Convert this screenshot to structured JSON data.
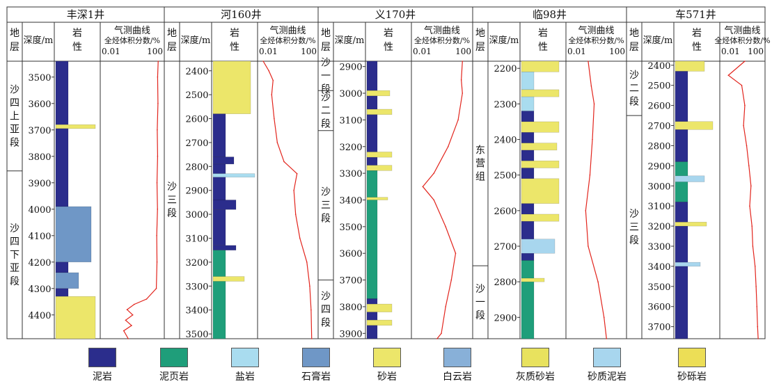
{
  "chart_data": [
    {
      "type": "well-log",
      "well": "丰深1井",
      "header": {
        "strat": "地层",
        "depth": "深度/m",
        "lith": "岩性",
        "gas_title": "气测曲线",
        "gas_unit": "全烃体积分数/%",
        "gas_min": "0.01",
        "gas_max": "100"
      },
      "depth_range": [
        3440,
        4490
      ],
      "depth_ticks": [
        3500,
        3600,
        3700,
        3800,
        3900,
        4000,
        4100,
        4200,
        4300,
        4400
      ],
      "strata": [
        {
          "name": "沙四上亚段",
          "top": 3440,
          "bottom": 3855
        },
        {
          "name": "沙四下亚段",
          "top": 3855,
          "bottom": 4490
        }
      ],
      "lithology": [
        {
          "top": 3440,
          "bottom": 3680,
          "rock": "泥岩",
          "width": 0.3
        },
        {
          "top": 3680,
          "bottom": 3695,
          "rock": "砂岩",
          "width": 0.95
        },
        {
          "top": 3695,
          "bottom": 3990,
          "rock": "泥岩",
          "width": 0.3
        },
        {
          "top": 3990,
          "bottom": 4200,
          "rock": "石膏岩",
          "width": 0.85
        },
        {
          "top": 4200,
          "bottom": 4240,
          "rock": "泥岩",
          "width": 0.3
        },
        {
          "top": 4240,
          "bottom": 4300,
          "rock": "石膏岩",
          "width": 0.55
        },
        {
          "top": 4300,
          "bottom": 4330,
          "rock": "泥岩",
          "width": 0.3
        },
        {
          "top": 4330,
          "bottom": 4490,
          "rock": "砂岩",
          "width": 0.95
        }
      ],
      "gas_curve": [
        [
          3440,
          60
        ],
        [
          3500,
          55
        ],
        [
          3600,
          58
        ],
        [
          3700,
          52
        ],
        [
          3800,
          55
        ],
        [
          3900,
          50
        ],
        [
          4000,
          54
        ],
        [
          4100,
          48
        ],
        [
          4200,
          50
        ],
        [
          4300,
          45
        ],
        [
          4340,
          10
        ],
        [
          4360,
          1.5
        ],
        [
          4380,
          0.5
        ],
        [
          4400,
          1.2
        ],
        [
          4420,
          0.4
        ],
        [
          4440,
          1.0
        ],
        [
          4460,
          0.3
        ],
        [
          4490,
          0.6
        ]
      ]
    },
    {
      "type": "well-log",
      "well": "河160井",
      "header": {
        "strat": "地层",
        "depth": "深度/m",
        "lith": "岩性",
        "gas_title": "气测曲线",
        "gas_unit": "全烃体积分数/%",
        "gas_min": "0.01",
        "gas_max": "100"
      },
      "depth_range": [
        2360,
        3520
      ],
      "depth_ticks": [
        2400,
        2500,
        2600,
        2700,
        2800,
        2900,
        3000,
        3100,
        3200,
        3300,
        3400,
        3500
      ],
      "strata": [
        {
          "name": "沙三段",
          "top": 2360,
          "bottom": 3520
        }
      ],
      "lithology": [
        {
          "top": 2360,
          "bottom": 2580,
          "rock": "砂岩",
          "width": 0.9
        },
        {
          "top": 2580,
          "bottom": 2760,
          "rock": "泥岩",
          "width": 0.3
        },
        {
          "top": 2760,
          "bottom": 2790,
          "rock": "泥岩",
          "width": 0.5
        },
        {
          "top": 2790,
          "bottom": 2830,
          "rock": "泥岩",
          "width": 0.3
        },
        {
          "top": 2830,
          "bottom": 2845,
          "rock": "盐岩",
          "width": 1.0
        },
        {
          "top": 2845,
          "bottom": 2940,
          "rock": "泥岩",
          "width": 0.3
        },
        {
          "top": 2940,
          "bottom": 2980,
          "rock": "泥岩",
          "width": 0.55
        },
        {
          "top": 2980,
          "bottom": 3130,
          "rock": "泥岩",
          "width": 0.3
        },
        {
          "top": 3130,
          "bottom": 3150,
          "rock": "泥岩",
          "width": 0.55
        },
        {
          "top": 3150,
          "bottom": 3520,
          "rock": "泥页岩",
          "width": 0.3
        },
        {
          "top": 3260,
          "bottom": 3280,
          "rock": "砂岩",
          "width": 0.75
        }
      ],
      "gas_curve": [
        [
          2360,
          0.02
        ],
        [
          2400,
          0.05
        ],
        [
          2440,
          0.1
        ],
        [
          2500,
          0.08
        ],
        [
          2600,
          0.12
        ],
        [
          2700,
          0.2
        ],
        [
          2780,
          0.6
        ],
        [
          2830,
          5
        ],
        [
          2900,
          3
        ],
        [
          3000,
          4
        ],
        [
          3100,
          8
        ],
        [
          3200,
          25
        ],
        [
          3300,
          40
        ],
        [
          3400,
          50
        ],
        [
          3520,
          55
        ]
      ]
    },
    {
      "type": "well-log",
      "well": "义170井",
      "header": {
        "strat": "地层",
        "depth": "深度/m",
        "lith": "岩性",
        "gas_title": "气测曲线",
        "gas_unit": "全烃体积分数/%",
        "gas_min": "0.01",
        "gas_max": "100"
      },
      "depth_range": [
        2880,
        3920
      ],
      "depth_ticks": [
        2900,
        3000,
        3100,
        3200,
        3300,
        3400,
        3500,
        3600,
        3700,
        3800,
        3900
      ],
      "strata": [
        {
          "name": "沙一段",
          "top": 2880,
          "bottom": 2990
        },
        {
          "name": "沙二段",
          "top": 2990,
          "bottom": 3140
        },
        {
          "name": "沙三段",
          "top": 3140,
          "bottom": 3700
        },
        {
          "name": "沙四段",
          "top": 3700,
          "bottom": 3920
        }
      ],
      "lithology": [
        {
          "top": 2880,
          "bottom": 3290,
          "rock": "泥岩",
          "width": 0.25
        },
        {
          "top": 2990,
          "bottom": 3010,
          "rock": "砂岩",
          "width": 0.55
        },
        {
          "top": 3060,
          "bottom": 3080,
          "rock": "砂岩",
          "width": 0.6
        },
        {
          "top": 3220,
          "bottom": 3240,
          "rock": "砂岩",
          "width": 0.6
        },
        {
          "top": 3270,
          "bottom": 3290,
          "rock": "砂岩",
          "width": 0.6
        },
        {
          "top": 3290,
          "bottom": 3770,
          "rock": "泥页岩",
          "width": 0.25
        },
        {
          "top": 3390,
          "bottom": 3400,
          "rock": "砂岩",
          "width": 0.5
        },
        {
          "top": 3770,
          "bottom": 3920,
          "rock": "泥岩",
          "width": 0.25
        },
        {
          "top": 3790,
          "bottom": 3820,
          "rock": "砂岩",
          "width": 0.6
        },
        {
          "top": 3850,
          "bottom": 3870,
          "rock": "砂岩",
          "width": 0.6
        }
      ],
      "gas_curve": [
        [
          2880,
          30
        ],
        [
          2950,
          25
        ],
        [
          3000,
          30
        ],
        [
          3100,
          15
        ],
        [
          3200,
          3
        ],
        [
          3300,
          0.3
        ],
        [
          3350,
          0.05
        ],
        [
          3400,
          0.3
        ],
        [
          3500,
          2
        ],
        [
          3600,
          10
        ],
        [
          3700,
          5
        ],
        [
          3800,
          2
        ],
        [
          3900,
          1
        ],
        [
          3920,
          0.5
        ]
      ]
    },
    {
      "type": "well-log",
      "well": "临98井",
      "header": {
        "strat": "地层",
        "depth": "深度/m",
        "lith": "岩性",
        "gas_title": "气测曲线",
        "gas_unit": "全烃体积分数/%",
        "gas_min": "0.01",
        "gas_max": "100"
      },
      "depth_range": [
        2180,
        2960
      ],
      "depth_ticks": [
        2200,
        2300,
        2400,
        2500,
        2600,
        2700,
        2800,
        2900
      ],
      "strata": [
        {
          "name": "东营组",
          "top": 2180,
          "bottom": 2755
        },
        {
          "name": "沙一段",
          "top": 2755,
          "bottom": 2960
        }
      ],
      "lithology": [
        {
          "top": 2180,
          "bottom": 2210,
          "rock": "砂岩",
          "width": 0.9
        },
        {
          "top": 2210,
          "bottom": 2260,
          "rock": "盐岩",
          "width": 0.3
        },
        {
          "top": 2260,
          "bottom": 2280,
          "rock": "砂岩",
          "width": 0.9
        },
        {
          "top": 2280,
          "bottom": 2320,
          "rock": "盐岩",
          "width": 0.3
        },
        {
          "top": 2320,
          "bottom": 2740,
          "rock": "泥岩",
          "width": 0.3
        },
        {
          "top": 2350,
          "bottom": 2380,
          "rock": "砂岩",
          "width": 0.9
        },
        {
          "top": 2410,
          "bottom": 2430,
          "rock": "砂岩",
          "width": 0.85
        },
        {
          "top": 2460,
          "bottom": 2480,
          "rock": "砂岩",
          "width": 0.9
        },
        {
          "top": 2510,
          "bottom": 2580,
          "rock": "砂岩",
          "width": 0.9
        },
        {
          "top": 2610,
          "bottom": 2630,
          "rock": "砂岩",
          "width": 0.9
        },
        {
          "top": 2680,
          "bottom": 2720,
          "rock": "砂质泥岩",
          "width": 0.8
        },
        {
          "top": 2740,
          "bottom": 2960,
          "rock": "泥页岩",
          "width": 0.3
        },
        {
          "top": 2790,
          "bottom": 2800,
          "rock": "砂岩",
          "width": 0.55
        }
      ],
      "gas_curve": [
        [
          2180,
          0.3
        ],
        [
          2250,
          0.5
        ],
        [
          2300,
          0.8
        ],
        [
          2400,
          0.6
        ],
        [
          2500,
          0.4
        ],
        [
          2600,
          0.2
        ],
        [
          2700,
          0.3
        ],
        [
          2800,
          1.5
        ],
        [
          2900,
          4
        ],
        [
          2960,
          6
        ]
      ]
    },
    {
      "type": "well-log",
      "well": "车571井",
      "header": {
        "strat": "地层",
        "depth": "深度/m",
        "lith": "岩性",
        "gas_title": "气测曲线",
        "gas_unit": "全烃体积分数/%",
        "gas_min": "0.01",
        "gas_max": "100"
      },
      "depth_range": [
        2380,
        3760
      ],
      "depth_ticks": [
        2400,
        2500,
        2600,
        2700,
        2800,
        2900,
        3000,
        3100,
        3200,
        3300,
        3400,
        3500,
        3600,
        3700
      ],
      "strata": [
        {
          "name": "沙二段",
          "top": 2380,
          "bottom": 2650
        },
        {
          "name": "沙三段",
          "top": 2650,
          "bottom": 3760
        }
      ],
      "lithology": [
        {
          "top": 2380,
          "bottom": 2430,
          "rock": "砂岩",
          "width": 0.7
        },
        {
          "top": 2430,
          "bottom": 2880,
          "rock": "泥岩",
          "width": 0.3
        },
        {
          "top": 2680,
          "bottom": 2720,
          "rock": "砂岩",
          "width": 0.9
        },
        {
          "top": 2880,
          "bottom": 3080,
          "rock": "泥页岩",
          "width": 0.3
        },
        {
          "top": 2950,
          "bottom": 2980,
          "rock": "砂质泥岩",
          "width": 0.7
        },
        {
          "top": 3080,
          "bottom": 3760,
          "rock": "泥岩",
          "width": 0.3
        },
        {
          "top": 3180,
          "bottom": 3200,
          "rock": "砂岩",
          "width": 0.75
        },
        {
          "top": 3380,
          "bottom": 3400,
          "rock": "砂质泥岩",
          "width": 0.6
        }
      ],
      "gas_curve": [
        [
          2380,
          2
        ],
        [
          2450,
          0.05
        ],
        [
          2500,
          1
        ],
        [
          2600,
          2
        ],
        [
          2700,
          1.5
        ],
        [
          2800,
          3
        ],
        [
          2900,
          5
        ],
        [
          3000,
          8
        ],
        [
          3100,
          6
        ],
        [
          3200,
          10
        ],
        [
          3300,
          12
        ],
        [
          3400,
          20
        ],
        [
          3500,
          25
        ],
        [
          3600,
          30
        ],
        [
          3700,
          35
        ],
        [
          3760,
          40
        ]
      ]
    }
  ],
  "legend": [
    {
      "label": "泥岩",
      "rock": "泥岩"
    },
    {
      "label": "泥页岩",
      "rock": "泥页岩"
    },
    {
      "label": "盐岩",
      "rock": "盐岩"
    },
    {
      "label": "石膏岩",
      "rock": "石膏岩"
    },
    {
      "label": "砂岩",
      "rock": "砂岩"
    },
    {
      "label": "白云岩",
      "rock": "白云岩"
    },
    {
      "label": "灰质砂岩",
      "rock": "灰质砂岩"
    },
    {
      "label": "砂质泥岩",
      "rock": "砂质泥岩"
    },
    {
      "label": "砂砾岩",
      "rock": "砂砾岩"
    }
  ],
  "colors": {
    "泥岩": "#2b2d8c",
    "泥页岩": "#1f9e7a",
    "盐岩": "#a9dcef",
    "石膏岩": "#6f97c6",
    "砂岩": "#ece66a",
    "白云岩": "#88b0d8",
    "灰质砂岩": "#e8e25e",
    "砂质泥岩": "#a8d6ee",
    "砂砾岩": "#ecde56",
    "curve": "#e2241c",
    "highlight": "#e23a9a"
  }
}
